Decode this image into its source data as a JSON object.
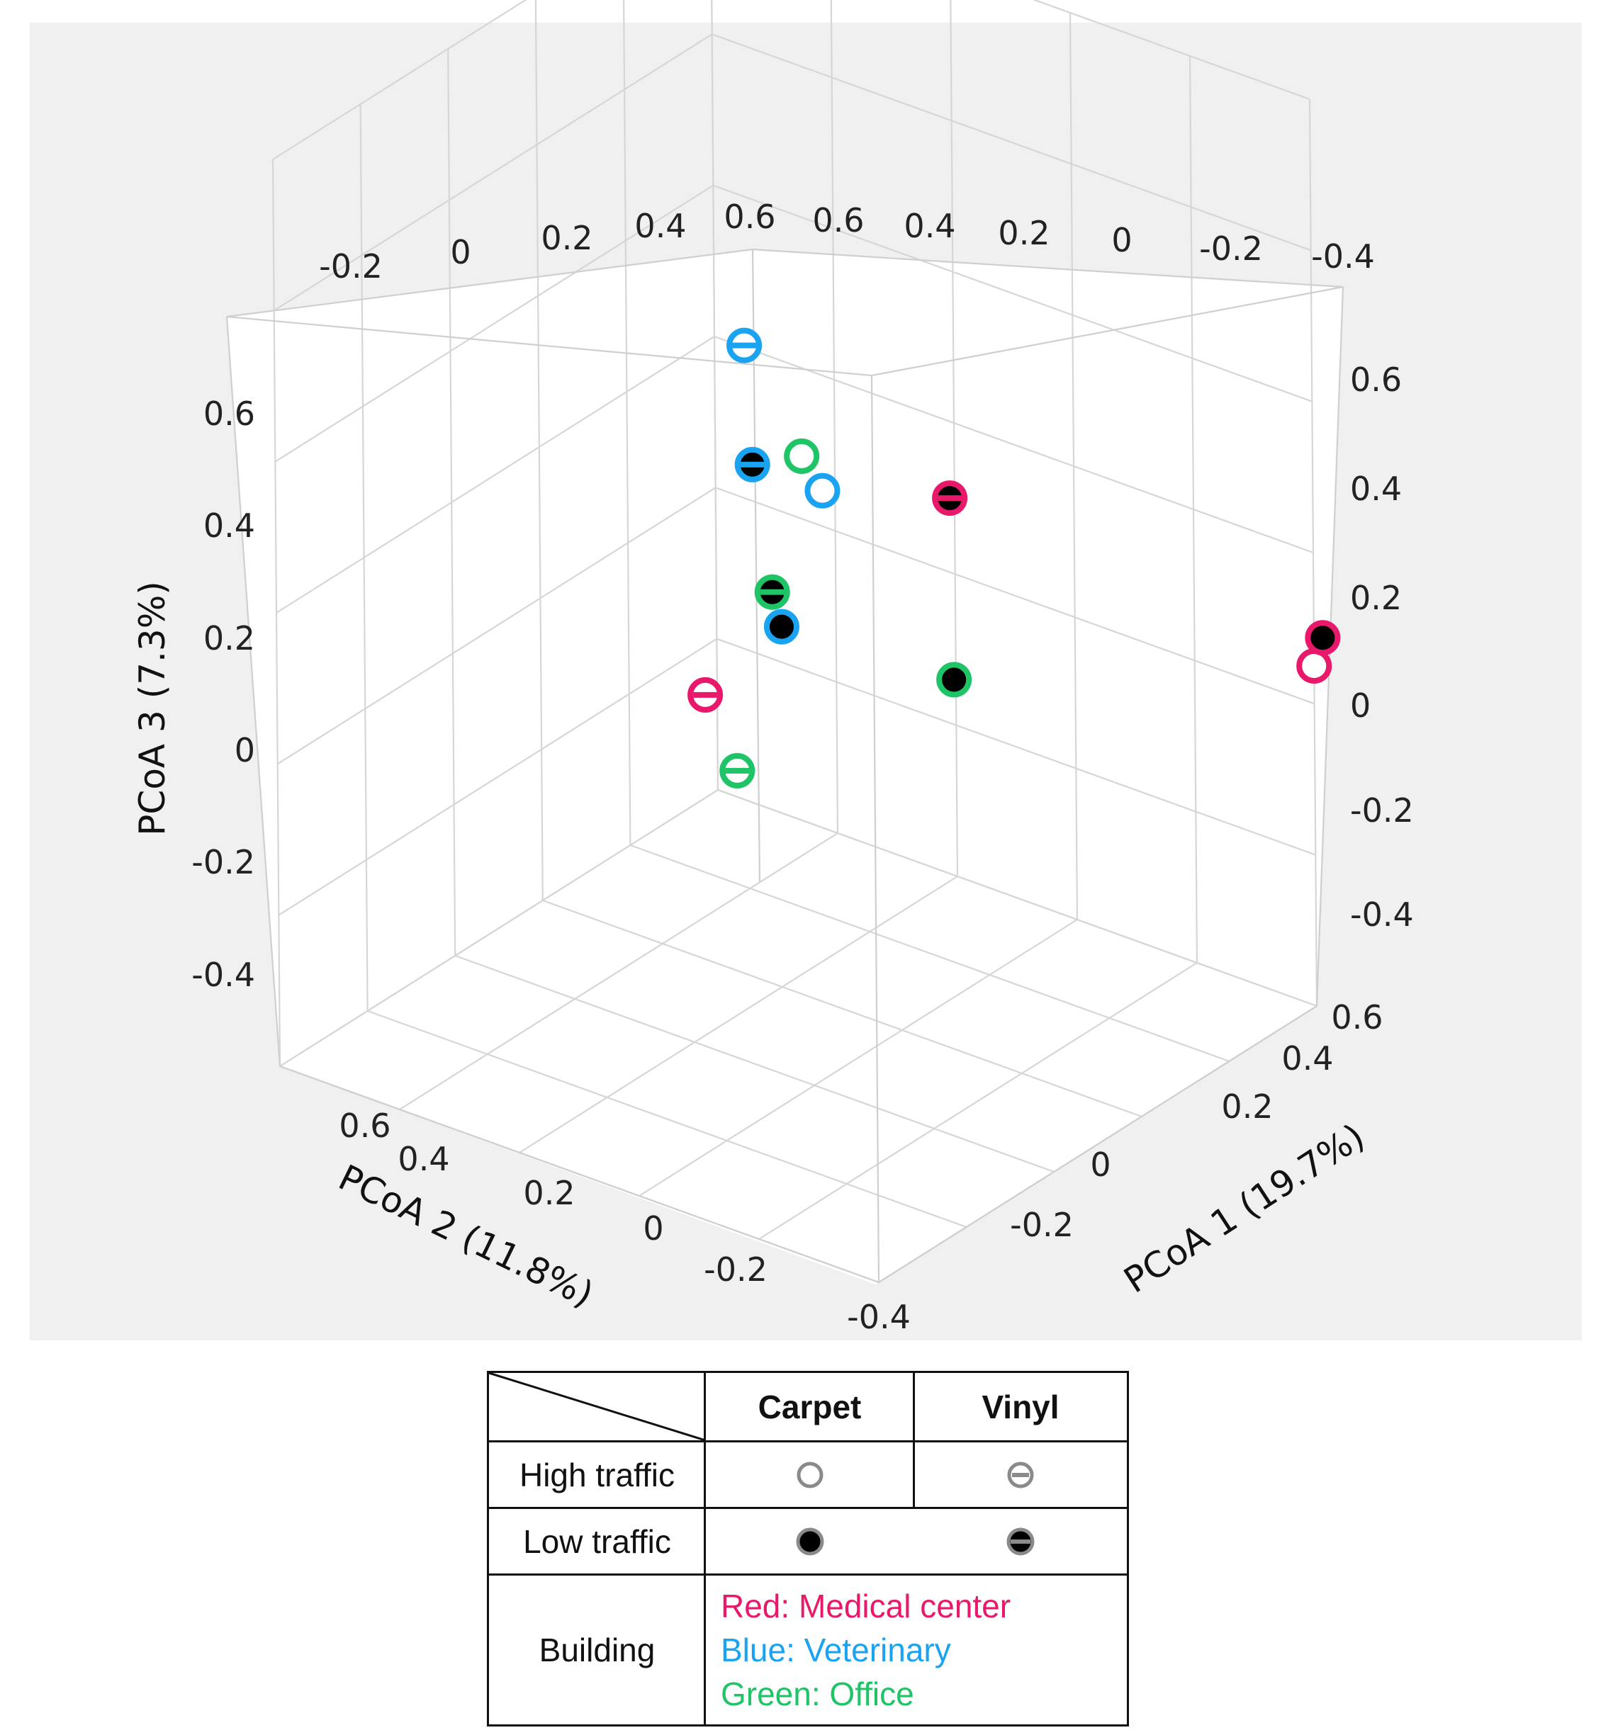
{
  "chart_data": {
    "type": "scatter",
    "projection": "3d",
    "axes": {
      "x": {
        "label": "PCoA 1 (19.7%)",
        "ticks": [
          "-0.4",
          "-0.2",
          "0",
          "0.2",
          "0.4",
          "0.6"
        ],
        "range": [
          -0.4,
          0.6
        ]
      },
      "y": {
        "label": "PCoA 2 (11.8%)",
        "ticks": [
          "-0.4",
          "-0.2",
          "0",
          "0.2",
          "0.4",
          "0.6"
        ],
        "range": [
          -0.4,
          0.6
        ]
      },
      "z": {
        "label": "PCoA 3 (7.3%)",
        "ticks": [
          "-0.4",
          "-0.2",
          "0",
          "0.2",
          "0.4",
          "0.6"
        ],
        "range": [
          -0.5,
          0.7
        ]
      }
    },
    "back_ticks": {
      "left": [
        "-0.2",
        "0",
        "0.2",
        "0.4",
        "0.6"
      ],
      "right": [
        "0.6",
        "0.4",
        "0.2",
        "0",
        "-0.2",
        "-0.4"
      ]
    },
    "grid": true,
    "series": [
      {
        "name": "Medical center",
        "color": "#e8196a",
        "points": [
          {
            "x": 0.6,
            "y": -0.4,
            "z": -0.05,
            "marker": "carpet-high"
          },
          {
            "x": 0.62,
            "y": -0.4,
            "z": -0.02,
            "marker": "carpet-low"
          },
          {
            "x": 0.25,
            "y": -0.05,
            "z": 0.2,
            "marker": "vinyl-low"
          },
          {
            "x": 0.6,
            "y": 0.62,
            "z": -0.38,
            "marker": "vinyl-high"
          }
        ]
      },
      {
        "name": "Veterinary",
        "color": "#1aa3f0",
        "points": [
          {
            "x": 0.3,
            "y": 0.2,
            "z": 0.12,
            "marker": "carpet-high"
          },
          {
            "x": 0.3,
            "y": 0.27,
            "z": -0.08,
            "marker": "carpet-low"
          },
          {
            "x": 0.25,
            "y": 0.28,
            "z": 0.15,
            "marker": "vinyl-low"
          },
          {
            "x": -0.35,
            "y": -0.15,
            "z": 0.65,
            "marker": "vinyl-high"
          }
        ]
      },
      {
        "name": "Office",
        "color": "#1fc466",
        "points": [
          {
            "x": 0.05,
            "y": 0.05,
            "z": 0.3,
            "marker": "carpet-high"
          },
          {
            "x": 0.46,
            "y": 0.1,
            "z": -0.16,
            "marker": "carpet-low"
          },
          {
            "x": 0.32,
            "y": 0.3,
            "z": -0.05,
            "marker": "vinyl-low"
          },
          {
            "x": 0.4,
            "y": 0.42,
            "z": -0.35,
            "marker": "vinyl-high"
          }
        ]
      }
    ]
  },
  "legend": {
    "header": {
      "carpet": "Carpet",
      "vinyl": "Vinyl"
    },
    "rows": [
      {
        "label": "High traffic",
        "carpet_marker": "carpet-high",
        "vinyl_marker": "vinyl-high"
      },
      {
        "label": "Low traffic",
        "carpet_marker": "carpet-low",
        "vinyl_marker": "vinyl-low"
      }
    ],
    "building_label": "Building",
    "buildings": [
      {
        "text": "Red: Medical center",
        "color": "#e8196a"
      },
      {
        "text": "Blue: Veterinary",
        "color": "#1aa3f0"
      },
      {
        "text": "Green: Office",
        "color": "#1fc466"
      }
    ]
  }
}
